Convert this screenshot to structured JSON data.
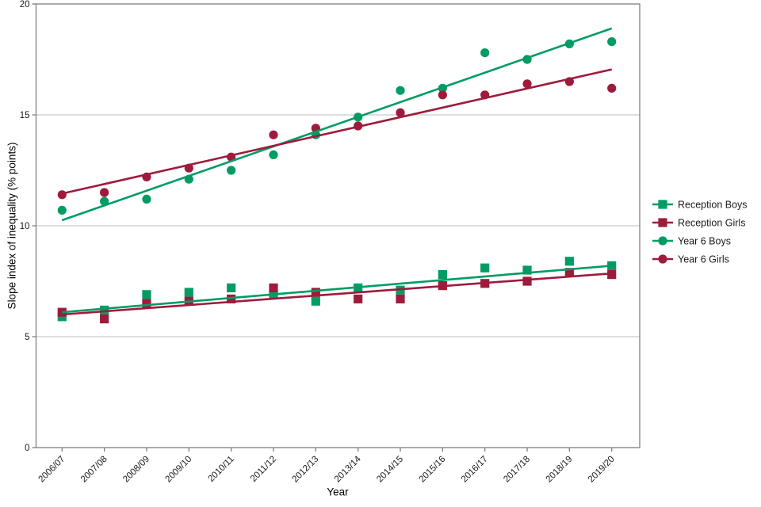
{
  "chart_data": {
    "type": "scatter",
    "title": "",
    "xlabel": "Year",
    "ylabel": "Slope index of inequality (% points)",
    "ylim": [
      0,
      20
    ],
    "yticks": [
      0,
      5,
      10,
      15,
      20
    ],
    "grid": "horizontal-major-only",
    "legend_position": "right",
    "categories": [
      "2006/07",
      "2007/08",
      "2008/09",
      "2009/10",
      "2010/11",
      "2011/12",
      "2012/13",
      "2013/14",
      "2014/15",
      "2015/16",
      "2016/17",
      "2017/18",
      "2018/19",
      "2019/20"
    ],
    "series": [
      {
        "name": "Reception Boys",
        "marker": "square",
        "color": "#009C64",
        "values": [
          5.9,
          6.2,
          6.9,
          7.0,
          7.2,
          6.9,
          6.6,
          7.2,
          7.1,
          7.8,
          8.1,
          8.0,
          8.4,
          8.2
        ],
        "trend_start": 6.1,
        "trend_end": 8.2
      },
      {
        "name": "Reception Girls",
        "marker": "square",
        "color": "#9E1B3C",
        "values": [
          6.1,
          5.8,
          6.5,
          6.6,
          6.7,
          7.2,
          7.0,
          6.7,
          6.7,
          7.3,
          7.4,
          7.5,
          7.9,
          7.8
        ],
        "trend_start": 6.0,
        "trend_end": 7.85
      },
      {
        "name": "Year 6 Boys",
        "marker": "circle",
        "color": "#009C64",
        "values": [
          10.7,
          11.1,
          11.2,
          12.1,
          12.5,
          13.2,
          14.1,
          14.9,
          16.1,
          16.2,
          17.8,
          17.5,
          18.2,
          18.3
        ],
        "trend_start": 10.25,
        "trend_end": 18.9
      },
      {
        "name": "Year 6 Girls",
        "marker": "circle",
        "color": "#9E1B3C",
        "values": [
          11.4,
          11.5,
          12.2,
          12.6,
          13.1,
          14.1,
          14.4,
          14.5,
          15.1,
          15.9,
          15.9,
          16.4,
          16.5,
          16.2
        ],
        "trend_start": 11.45,
        "trend_end": 17.05
      }
    ]
  },
  "colors": {
    "green": "#009C64",
    "red": "#9E1B3C",
    "gridline": "#c9c9c9",
    "panel_border": "#7f7f7f",
    "tick": "#7f7f7f",
    "label_text": "#1a1a1a"
  }
}
